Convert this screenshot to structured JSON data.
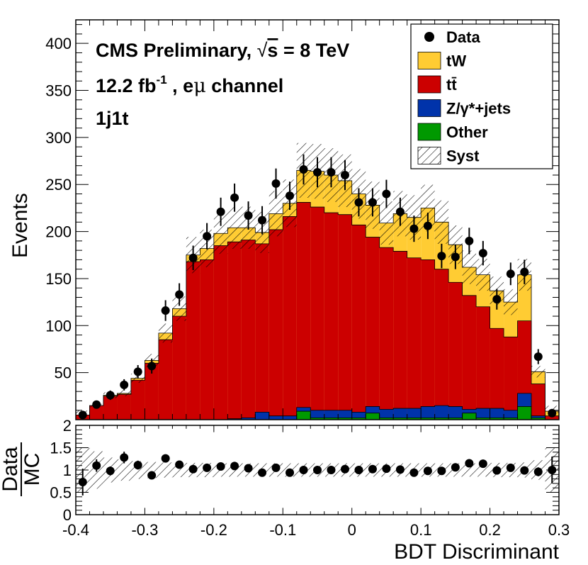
{
  "chart_data": {
    "type": "stacked-histogram-with-ratio",
    "annotations": {
      "experiment": "CMS Preliminary, ",
      "energy_sqrt": "s",
      "energy_rest": " = 8 TeV",
      "lumi_value": "12.2 fb",
      "lumi_exp": "-1",
      "lumi_rest": " , e",
      "lumi_mu": "μ",
      "lumi_channel": " channel",
      "category": "1j1t"
    },
    "xlabel": "BDT Discriminant",
    "ylabel": "Events",
    "ratio_ylabel_num": "Data",
    "ratio_ylabel_den": "MC",
    "xlim": [
      -0.4,
      0.3
    ],
    "ylim": [
      0,
      425
    ],
    "ratio_ylim": [
      0,
      2
    ],
    "xticks": [
      "-0.4",
      "-0.3",
      "-0.2",
      "-0.1",
      "0",
      "0.1",
      "0.2",
      "0.3"
    ],
    "yticks": [
      "50",
      "100",
      "150",
      "200",
      "250",
      "300",
      "350",
      "400"
    ],
    "ratio_yticks": [
      "0",
      "0.5",
      "1",
      "1.5",
      "2"
    ],
    "bin_edges": [
      -0.4,
      -0.38,
      -0.36,
      -0.34,
      -0.32,
      -0.3,
      -0.28,
      -0.26,
      -0.24,
      -0.22,
      -0.2,
      -0.18,
      -0.16,
      -0.14,
      -0.12,
      -0.1,
      -0.08,
      -0.06,
      -0.04,
      -0.02,
      0.0,
      0.02,
      0.04,
      0.06,
      0.08,
      0.1,
      0.12,
      0.14,
      0.16,
      0.18,
      0.2,
      0.22,
      0.24,
      0.26,
      0.28,
      0.3
    ],
    "legend": [
      {
        "label": "Data",
        "kind": "marker",
        "color": "#000000"
      },
      {
        "label": "tW",
        "kind": "fill",
        "color": "#ffcc33"
      },
      {
        "label": "tt̄",
        "kind": "fill",
        "color": "#cc0000"
      },
      {
        "label": "Z/γ*+jets",
        "kind": "fill",
        "color": "#0033aa"
      },
      {
        "label": "Other",
        "kind": "fill",
        "color": "#009900"
      },
      {
        "label": "Syst",
        "kind": "hatch",
        "color": "#000000"
      }
    ],
    "series": [
      {
        "name": "Other",
        "color": "#009900",
        "values": [
          0,
          0,
          0,
          0,
          0,
          0,
          0,
          0,
          0,
          0,
          0,
          0,
          0,
          0,
          0,
          0,
          9,
          2,
          2,
          2,
          2,
          7,
          2,
          2,
          2,
          2,
          2,
          2,
          7,
          2,
          2,
          2,
          14,
          2,
          0
        ]
      },
      {
        "name": "Z/γ*+jets",
        "color": "#0033aa",
        "values": [
          0,
          0,
          0,
          0,
          0,
          0,
          0,
          0,
          0,
          0,
          0,
          1,
          2,
          8,
          4,
          4,
          4,
          8,
          8,
          8,
          6,
          7,
          9,
          10,
          10,
          12,
          13,
          12,
          4,
          10,
          10,
          8,
          14,
          2,
          0
        ]
      },
      {
        "name": "tt̄",
        "color": "#cc0000",
        "values": [
          5,
          15,
          25,
          27,
          42,
          60,
          85,
          110,
          168,
          170,
          185,
          188,
          189,
          179,
          198,
          212,
          218,
          216,
          210,
          208,
          199,
          180,
          172,
          167,
          160,
          156,
          145,
          132,
          121,
          108,
          85,
          78,
          77,
          34,
          4
        ]
      },
      {
        "name": "tW",
        "color": "#ffcc33",
        "values": [
          0,
          0,
          1,
          1,
          2,
          3,
          7,
          8,
          7,
          12,
          13,
          15,
          13,
          12,
          17,
          14,
          34,
          38,
          40,
          36,
          33,
          34,
          26,
          40,
          43,
          55,
          50,
          40,
          30,
          34,
          40,
          37,
          49,
          13,
          5
        ]
      }
    ],
    "data": {
      "values": [
        5,
        16,
        26,
        37,
        51,
        57,
        116,
        133,
        172,
        195,
        221,
        236,
        217,
        212,
        251,
        238,
        266,
        263,
        263,
        260,
        231,
        231,
        240,
        221,
        203,
        206,
        174,
        173,
        190,
        177,
        128,
        155,
        157,
        67,
        7
      ],
      "errors": [
        3,
        4,
        5,
        6,
        7,
        8,
        11,
        12,
        13,
        14,
        15,
        15,
        15,
        15,
        16,
        15,
        16,
        16,
        16,
        16,
        15,
        15,
        15,
        15,
        14,
        14,
        13,
        13,
        14,
        13,
        11,
        12,
        13,
        8,
        3
      ]
    },
    "ratio": {
      "values": [
        0.73,
        1.1,
        0.98,
        1.28,
        1.11,
        0.88,
        1.26,
        1.12,
        1.02,
        1.05,
        1.08,
        1.09,
        1.04,
        0.94,
        1.05,
        0.94,
        1.0,
        1.0,
        1.0,
        1.02,
        1.0,
        1.02,
        1.03,
        1.01,
        0.94,
        0.98,
        0.98,
        1.06,
        1.15,
        1.14,
        0.99,
        1.05,
        0.99,
        0.96,
        1.0
      ],
      "errors": [
        0.3,
        0.14,
        0.1,
        0.13,
        0.1,
        0.08,
        0.07,
        0.06,
        0.05,
        0.05,
        0.05,
        0.05,
        0.05,
        0.05,
        0.05,
        0.05,
        0.05,
        0.05,
        0.05,
        0.05,
        0.05,
        0.05,
        0.05,
        0.05,
        0.05,
        0.05,
        0.05,
        0.06,
        0.06,
        0.06,
        0.06,
        0.06,
        0.06,
        0.1,
        0.3
      ]
    },
    "syst_band": {
      "rel_main": [
        0.15,
        0.12,
        0.12,
        0.11,
        0.11,
        0.11,
        0.11,
        0.11,
        0.11,
        0.11,
        0.11,
        0.11,
        0.11,
        0.11,
        0.11,
        0.11,
        0.11,
        0.11,
        0.11,
        0.11,
        0.11,
        0.11,
        0.11,
        0.11,
        0.11,
        0.11,
        0.11,
        0.11,
        0.11,
        0.11,
        0.11,
        0.11,
        0.11,
        0.12,
        0.2
      ],
      "ratio_half": [
        0.5,
        0.42,
        0.28,
        0.24,
        0.2,
        0.18,
        0.17,
        0.16,
        0.16,
        0.16,
        0.15,
        0.15,
        0.15,
        0.15,
        0.15,
        0.15,
        0.15,
        0.15,
        0.15,
        0.15,
        0.15,
        0.15,
        0.15,
        0.15,
        0.15,
        0.15,
        0.15,
        0.15,
        0.15,
        0.15,
        0.16,
        0.16,
        0.17,
        0.22,
        0.5
      ]
    }
  }
}
